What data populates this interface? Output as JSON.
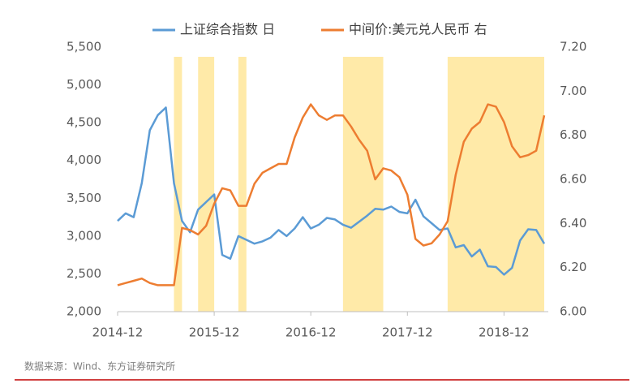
{
  "chart_data": {
    "type": "line",
    "x": [
      "2014-12",
      "2015-01",
      "2015-02",
      "2015-03",
      "2015-04",
      "2015-05",
      "2015-06",
      "2015-07",
      "2015-08",
      "2015-09",
      "2015-10",
      "2015-11",
      "2015-12",
      "2016-01",
      "2016-02",
      "2016-03",
      "2016-04",
      "2016-05",
      "2016-06",
      "2016-07",
      "2016-08",
      "2016-09",
      "2016-10",
      "2016-11",
      "2016-12",
      "2017-01",
      "2017-02",
      "2017-03",
      "2017-04",
      "2017-05",
      "2017-06",
      "2017-07",
      "2017-08",
      "2017-09",
      "2017-10",
      "2017-11",
      "2017-12",
      "2018-01",
      "2018-02",
      "2018-03",
      "2018-04",
      "2018-05",
      "2018-06",
      "2018-07",
      "2018-08",
      "2018-09",
      "2018-10",
      "2018-11",
      "2018-12",
      "2019-01",
      "2019-02",
      "2019-03",
      "2019-04",
      "2019-05"
    ],
    "series": [
      {
        "name": "上证综合指数 日",
        "color": "#5b9bd5",
        "axis": "y",
        "values": [
          3200,
          3300,
          3250,
          3700,
          4400,
          4600,
          4700,
          3700,
          3200,
          3050,
          3350,
          3450,
          3550,
          2750,
          2700,
          3000,
          2950,
          2900,
          2930,
          2980,
          3080,
          3000,
          3100,
          3250,
          3100,
          3150,
          3240,
          3220,
          3150,
          3110,
          3190,
          3270,
          3360,
          3350,
          3390,
          3320,
          3300,
          3480,
          3260,
          3170,
          3080,
          3100,
          2850,
          2880,
          2730,
          2820,
          2600,
          2590,
          2490,
          2580,
          2940,
          3090,
          3080,
          2900
        ]
      },
      {
        "name": "中间价:美元兑人民币 右",
        "color": "#ed7d31",
        "axis": "y2",
        "values": [
          6.12,
          6.13,
          6.14,
          6.15,
          6.13,
          6.12,
          6.12,
          6.12,
          6.38,
          6.37,
          6.35,
          6.39,
          6.49,
          6.56,
          6.55,
          6.48,
          6.48,
          6.58,
          6.63,
          6.65,
          6.67,
          6.67,
          6.79,
          6.88,
          6.94,
          6.89,
          6.87,
          6.89,
          6.89,
          6.84,
          6.78,
          6.73,
          6.6,
          6.65,
          6.64,
          6.61,
          6.53,
          6.33,
          6.3,
          6.31,
          6.35,
          6.41,
          6.62,
          6.77,
          6.83,
          6.86,
          6.94,
          6.93,
          6.86,
          6.75,
          6.7,
          6.71,
          6.73,
          6.89
        ]
      }
    ],
    "shaded_periods": [
      [
        "2015-07",
        "2015-08"
      ],
      [
        "2015-10",
        "2015-12"
      ],
      [
        "2016-03",
        "2016-04"
      ],
      [
        "2017-04",
        "2017-09"
      ],
      [
        "2018-05",
        "2019-05"
      ]
    ],
    "shade_color": "#ffe699",
    "xticks": [
      "2014-12",
      "2015-12",
      "2016-12",
      "2017-12",
      "2018-12"
    ],
    "ylim": [
      2000,
      5500
    ],
    "yticks": [
      {
        "value": 2000,
        "label": "2,000"
      },
      {
        "value": 2500,
        "label": "2,500"
      },
      {
        "value": 3000,
        "label": "3,000"
      },
      {
        "value": 3500,
        "label": "3,500"
      },
      {
        "value": 4000,
        "label": "4,000"
      },
      {
        "value": 4500,
        "label": "4,500"
      },
      {
        "value": 5000,
        "label": "5,000"
      },
      {
        "value": 5500,
        "label": "5,500"
      }
    ],
    "y2lim": [
      6.0,
      7.2
    ],
    "y2ticks": [
      {
        "value": 6.0,
        "label": "6.00"
      },
      {
        "value": 6.2,
        "label": "6.20"
      },
      {
        "value": 6.4,
        "label": "6.40"
      },
      {
        "value": 6.6,
        "label": "6.60"
      },
      {
        "value": 6.8,
        "label": "6.80"
      },
      {
        "value": 7.0,
        "label": "7.00"
      },
      {
        "value": 7.2,
        "label": "7.20"
      }
    ],
    "source": "数据来源：Wind、东方证券研究所"
  }
}
